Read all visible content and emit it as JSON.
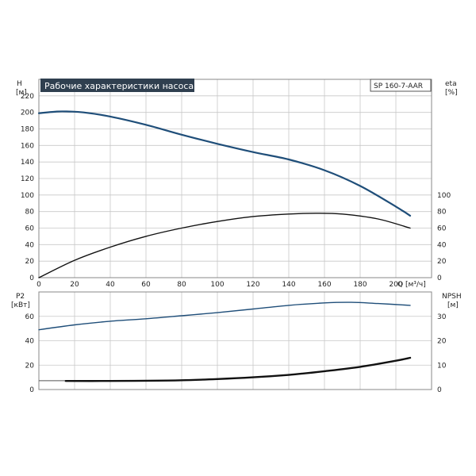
{
  "chart_data": [
    {
      "type": "line",
      "title": "Рабочие характеристики насоса",
      "model": "SP 160-7-AAR",
      "xlabel": "Q [м³/ч]",
      "xlim": [
        0,
        220
      ],
      "x_ticks": [
        0,
        20,
        40,
        60,
        80,
        100,
        120,
        140,
        160,
        180,
        200
      ],
      "y_left": {
        "label": "H",
        "unit": "[м]",
        "lim": [
          0,
          240
        ],
        "ticks": [
          0,
          20,
          40,
          60,
          80,
          100,
          120,
          140,
          160,
          180,
          200,
          220
        ]
      },
      "y_right": {
        "label": "eta",
        "unit": "[%]",
        "lim": [
          0,
          240
        ],
        "ticks": [
          0,
          20,
          40,
          60,
          80,
          100
        ]
      },
      "grid": true,
      "series": [
        {
          "key": "H",
          "axis": "left",
          "color": "#1f4e79",
          "x": [
            0,
            10,
            17,
            25,
            40,
            60,
            80,
            100,
            120,
            140,
            160,
            180,
            200,
            208
          ],
          "y": [
            199,
            201,
            201,
            200,
            195,
            185,
            173,
            162,
            152,
            143,
            130,
            111,
            86,
            75
          ]
        },
        {
          "key": "eta",
          "axis": "right",
          "color": "#111111",
          "x": [
            0,
            20,
            40,
            60,
            80,
            100,
            120,
            140,
            155,
            170,
            190,
            208
          ],
          "y": [
            0,
            21,
            37,
            50,
            60,
            68,
            74,
            77,
            78,
            77,
            71,
            60
          ]
        }
      ]
    },
    {
      "type": "line",
      "xlim": [
        0,
        220
      ],
      "y_left": {
        "label": "P2",
        "unit": "[кВт]",
        "lim": [
          0,
          80
        ],
        "ticks": [
          0,
          20,
          40,
          60
        ]
      },
      "y_right": {
        "label": "NPSH",
        "unit": "[м]",
        "lim": [
          0,
          40
        ],
        "ticks": [
          0,
          10,
          20,
          30
        ]
      },
      "grid": true,
      "series": [
        {
          "key": "P2",
          "axis": "left",
          "color": "#1f4e79",
          "x": [
            0,
            20,
            40,
            60,
            80,
            100,
            120,
            140,
            160,
            175,
            190,
            208
          ],
          "y": [
            49,
            53,
            56,
            58,
            60.5,
            63,
            66,
            69,
            71,
            71.5,
            70.5,
            69
          ]
        },
        {
          "key": "NPSH",
          "axis": "right",
          "color": "#111111",
          "x": [
            15,
            40,
            60,
            80,
            100,
            120,
            140,
            160,
            180,
            200,
            208
          ],
          "y": [
            3.5,
            3.5,
            3.6,
            3.8,
            4.3,
            5.0,
            6.0,
            7.5,
            9.3,
            11.8,
            13.0
          ]
        }
      ],
      "npsh_ref": {
        "axis": "right",
        "x": [
          0,
          15
        ],
        "y": [
          3.6,
          3.6
        ],
        "color": "#555555"
      }
    }
  ]
}
